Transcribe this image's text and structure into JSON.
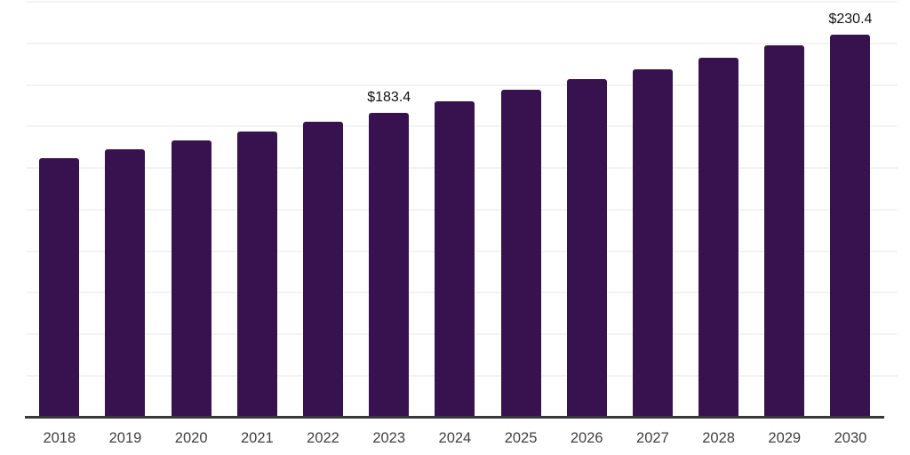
{
  "chart_data": {
    "type": "bar",
    "categories": [
      "2018",
      "2019",
      "2020",
      "2021",
      "2022",
      "2023",
      "2024",
      "2025",
      "2026",
      "2027",
      "2028",
      "2029",
      "2030"
    ],
    "values": [
      156.1,
      161.2,
      166.6,
      171.9,
      177.7,
      183.4,
      190.0,
      196.8,
      203.4,
      209.4,
      216.3,
      223.7,
      230.4
    ],
    "value_labels": [
      {
        "index": 5,
        "text": "$183.4"
      },
      {
        "index": 12,
        "text": "$230.4"
      }
    ],
    "title": "",
    "xlabel": "",
    "ylabel": "",
    "ylim": [
      0,
      250
    ],
    "gridline_step": 25,
    "grid": true,
    "legend": "none",
    "y_axis_labels_visible": false
  },
  "colors": {
    "bar": "#37124e",
    "axis_line": "#383838",
    "gridline": "#f3f3f3",
    "tick_label": "#404040",
    "value_label": "#111111",
    "background": "#ffffff"
  }
}
